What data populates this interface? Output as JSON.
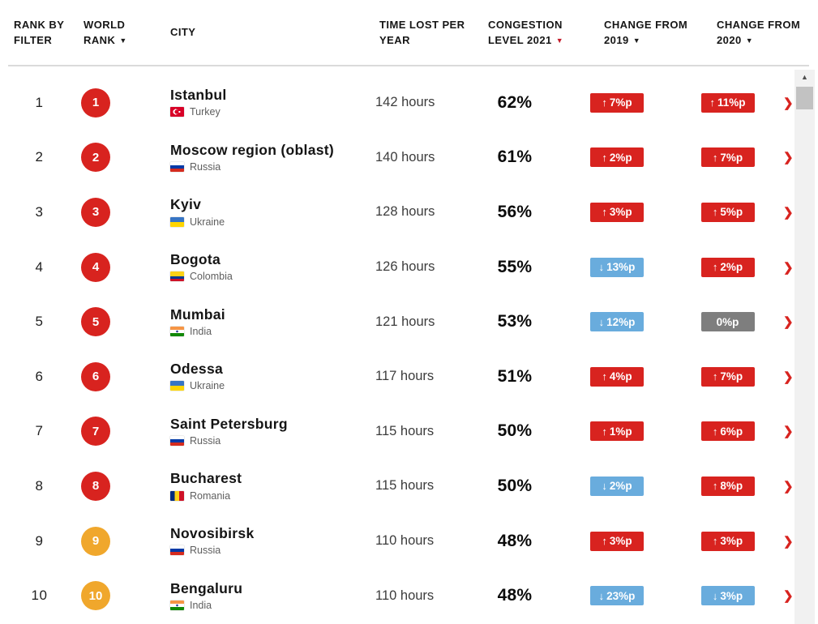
{
  "header": {
    "columns": [
      {
        "id": "rank-by-filter",
        "lines": [
          "RANK BY",
          "FILTER"
        ],
        "sort": null
      },
      {
        "id": "world-rank",
        "lines": [
          "WORLD",
          "RANK"
        ],
        "sort": "black"
      },
      {
        "id": "city",
        "lines": [
          "CITY"
        ],
        "sort": null
      },
      {
        "id": "time-lost",
        "lines": [
          "TIME LOST PER",
          "YEAR"
        ],
        "sort": null
      },
      {
        "id": "congestion",
        "lines": [
          "CONGESTION",
          "LEVEL 2021"
        ],
        "sort": "red"
      },
      {
        "id": "change-2019",
        "lines": [
          "CHANGE FROM",
          "2019"
        ],
        "sort": "black"
      },
      {
        "id": "change-2020",
        "lines": [
          "CHANGE FROM",
          "2020"
        ],
        "sort": "black"
      }
    ]
  },
  "rows": [
    {
      "rank": "1",
      "world_rank": "1",
      "badge": "red",
      "city": "Istanbul",
      "country": "Turkey",
      "flag": "turkey",
      "time_lost": "142 hours",
      "congestion": "62%",
      "change_2019": {
        "arrow": "up",
        "label": "7%p",
        "color": "red"
      },
      "change_2020": {
        "arrow": "up",
        "label": "11%p",
        "color": "red"
      }
    },
    {
      "rank": "2",
      "world_rank": "2",
      "badge": "red",
      "city": "Moscow region (oblast)",
      "country": "Russia",
      "flag": "russia",
      "time_lost": "140 hours",
      "congestion": "61%",
      "change_2019": {
        "arrow": "up",
        "label": "2%p",
        "color": "red"
      },
      "change_2020": {
        "arrow": "up",
        "label": "7%p",
        "color": "red"
      }
    },
    {
      "rank": "3",
      "world_rank": "3",
      "badge": "red",
      "city": "Kyiv",
      "country": "Ukraine",
      "flag": "ukraine",
      "time_lost": "128 hours",
      "congestion": "56%",
      "change_2019": {
        "arrow": "up",
        "label": "3%p",
        "color": "red"
      },
      "change_2020": {
        "arrow": "up",
        "label": "5%p",
        "color": "red"
      }
    },
    {
      "rank": "4",
      "world_rank": "4",
      "badge": "red",
      "city": "Bogota",
      "country": "Colombia",
      "flag": "colombia",
      "time_lost": "126 hours",
      "congestion": "55%",
      "change_2019": {
        "arrow": "down",
        "label": "13%p",
        "color": "blue"
      },
      "change_2020": {
        "arrow": "up",
        "label": "2%p",
        "color": "red"
      }
    },
    {
      "rank": "5",
      "world_rank": "5",
      "badge": "red",
      "city": "Mumbai",
      "country": "India",
      "flag": "india",
      "time_lost": "121 hours",
      "congestion": "53%",
      "change_2019": {
        "arrow": "down",
        "label": "12%p",
        "color": "blue"
      },
      "change_2020": {
        "arrow": null,
        "label": "0%p",
        "color": "grey"
      }
    },
    {
      "rank": "6",
      "world_rank": "6",
      "badge": "red",
      "city": "Odessa",
      "country": "Ukraine",
      "flag": "ukraine",
      "time_lost": "117 hours",
      "congestion": "51%",
      "change_2019": {
        "arrow": "up",
        "label": "4%p",
        "color": "red"
      },
      "change_2020": {
        "arrow": "up",
        "label": "7%p",
        "color": "red"
      }
    },
    {
      "rank": "7",
      "world_rank": "7",
      "badge": "red",
      "city": "Saint Petersburg",
      "country": "Russia",
      "flag": "russia",
      "time_lost": "115 hours",
      "congestion": "50%",
      "change_2019": {
        "arrow": "up",
        "label": "1%p",
        "color": "red"
      },
      "change_2020": {
        "arrow": "up",
        "label": "6%p",
        "color": "red"
      }
    },
    {
      "rank": "8",
      "world_rank": "8",
      "badge": "red",
      "city": "Bucharest",
      "country": "Romania",
      "flag": "romania",
      "time_lost": "115 hours",
      "congestion": "50%",
      "change_2019": {
        "arrow": "down",
        "label": "2%p",
        "color": "blue"
      },
      "change_2020": {
        "arrow": "up",
        "label": "8%p",
        "color": "red"
      }
    },
    {
      "rank": "9",
      "world_rank": "9",
      "badge": "amber",
      "city": "Novosibirsk",
      "country": "Russia",
      "flag": "russia",
      "time_lost": "110 hours",
      "congestion": "48%",
      "change_2019": {
        "arrow": "up",
        "label": "3%p",
        "color": "red"
      },
      "change_2020": {
        "arrow": "up",
        "label": "3%p",
        "color": "red"
      }
    },
    {
      "rank": "10",
      "world_rank": "10",
      "badge": "amber",
      "city": "Bengaluru",
      "country": "India",
      "flag": "india",
      "time_lost": "110 hours",
      "congestion": "48%",
      "change_2019": {
        "arrow": "down",
        "label": "23%p",
        "color": "blue"
      },
      "change_2020": {
        "arrow": "down",
        "label": "3%p",
        "color": "blue"
      }
    }
  ],
  "icons": {
    "sort_desc": "▼",
    "up_arrow": "↑",
    "down_arrow": "↓",
    "chevron_right": "❯",
    "scroll_up": "▲"
  },
  "colors": {
    "header_text": "#161616",
    "sort_red": "#c31b2a",
    "divider": "#dadada",
    "badge_red": "#d8231f",
    "badge_blue": "#69acdd",
    "badge_grey": "#7e7e7e",
    "circle_red": "#d8231f",
    "circle_amber": "#f0a72c",
    "hours_text": "#3c3c3c",
    "country_text": "#5e5e5e",
    "scroll_track": "#f1f1f1",
    "scroll_thumb": "#c2c2c2"
  }
}
